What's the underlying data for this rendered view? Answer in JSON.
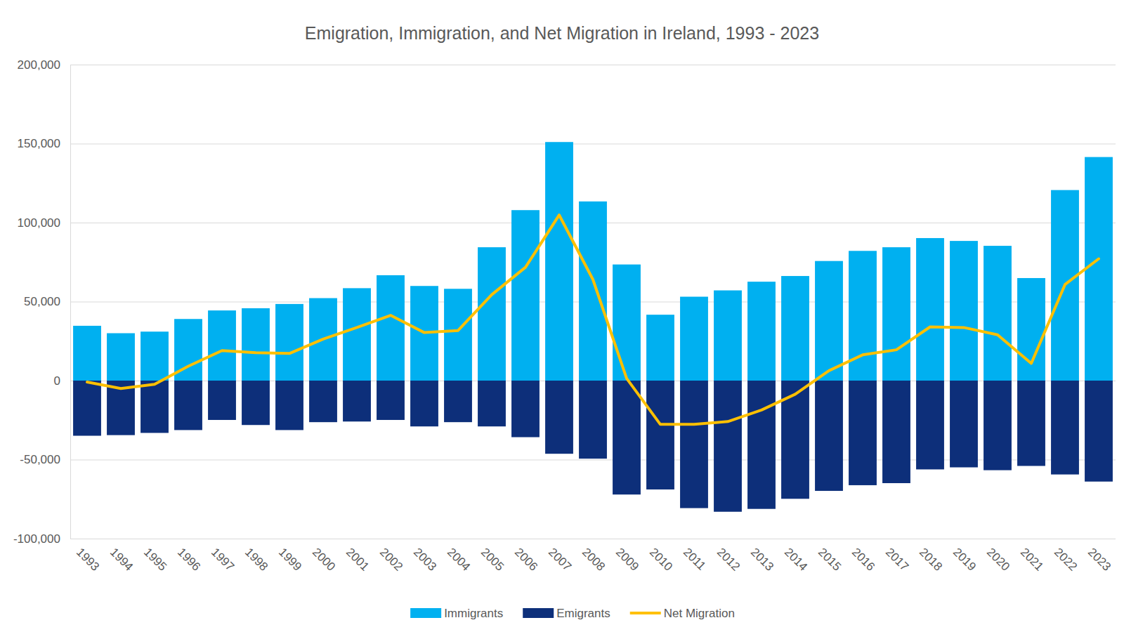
{
  "chart_data": {
    "type": "bar",
    "title": "Emigration, Immigration, and Net Migration in Ireland, 1993 - 2023",
    "categories": [
      "1993",
      "1994",
      "1995",
      "1996",
      "1997",
      "1998",
      "1999",
      "2000",
      "2001",
      "2002",
      "2003",
      "2004",
      "2005",
      "2006",
      "2007",
      "2008",
      "2009",
      "2010",
      "2011",
      "2012",
      "2013",
      "2014",
      "2015",
      "2016",
      "2017",
      "2018",
      "2019",
      "2020",
      "2021",
      "2022",
      "2023"
    ],
    "series": [
      {
        "name": "Immigrants",
        "type": "bar",
        "color": "#00b0f0",
        "values": [
          34700,
          30000,
          31000,
          39000,
          44400,
          45800,
          48500,
          52200,
          58500,
          66700,
          59900,
          58100,
          84400,
          107900,
          151000,
          113400,
          73500,
          41700,
          53100,
          57100,
          62600,
          66200,
          75700,
          82100,
          84400,
          90200,
          88400,
          85300,
          64900,
          120600,
          141500
        ]
      },
      {
        "name": "Emigrants",
        "type": "bar",
        "color": "#0d2f7a",
        "values": [
          -34900,
          -34500,
          -33100,
          -31300,
          -24900,
          -28100,
          -31300,
          -26300,
          -25900,
          -24900,
          -29000,
          -26300,
          -29000,
          -35800,
          -46300,
          -49400,
          -72100,
          -68900,
          -80700,
          -83000,
          -81200,
          -74800,
          -69800,
          -66200,
          -64900,
          -56200,
          -54900,
          -56700,
          -54000,
          -59400,
          -63900
        ]
      },
      {
        "name": "Net Migration",
        "type": "line",
        "color": "#ffc000",
        "values": [
          -900,
          -5000,
          -2300,
          9100,
          19000,
          17700,
          17200,
          26300,
          33600,
          41300,
          30400,
          31700,
          54400,
          71700,
          104800,
          64000,
          1400,
          -27700,
          -27700,
          -25900,
          -18600,
          -8600,
          6300,
          16300,
          19500,
          34000,
          33600,
          29000,
          10900,
          60800,
          77100
        ]
      }
    ],
    "ylim": [
      -100000,
      200000
    ],
    "yticks": [
      {
        "value": -100000,
        "label": "-100,000"
      },
      {
        "value": -50000,
        "label": "-50,000"
      },
      0,
      {
        "value": 50000,
        "label": "50,000"
      },
      {
        "value": 100000,
        "label": "100,000"
      },
      {
        "value": 150000,
        "label": "150,000"
      },
      {
        "value": 200000,
        "label": "200,000"
      }
    ],
    "grid": true,
    "legend": "bottom"
  }
}
